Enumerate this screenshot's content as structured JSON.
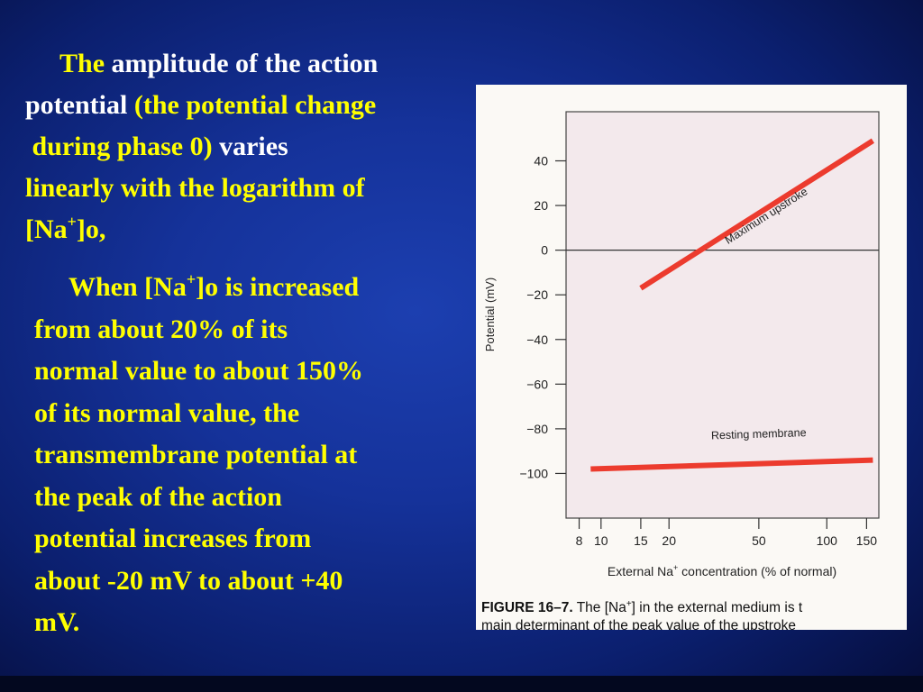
{
  "slide": {
    "p1": {
      "w1": "The",
      "w2": "amplitude of the action",
      "w3": "potential",
      "w4": "(the potential change",
      "w5": "during phase 0)",
      "w6": "varies",
      "w7": "linearly with the logarithm of",
      "w8a": "[Na",
      "w8sup": "+",
      "w8b": "]o,"
    },
    "p2": {
      "l1a": "When [Na",
      "l1sup": "+",
      "l1b": "]o is increased",
      "l2": "from  about 20% of its",
      "l3": "normal value to about 150%",
      "l4": "of its normal value, the",
      "l5": "transmembrane potential at",
      "l6": "the peak of the action",
      "l7": "potential increases from",
      "l8": "about -20 mV to about  +40",
      "l9": "mV."
    }
  },
  "figure": {
    "caption_line1_a": "FIGURE 16–7.",
    "caption_line1_b": "The [Na",
    "caption_line1_sup": "+",
    "caption_line1_c": "] in the external medium is t",
    "caption_line2": "main determinant of the peak value of the upstroke"
  },
  "chart_data": {
    "type": "line",
    "xscale": "log",
    "x_ticks": [
      8,
      10,
      15,
      20,
      50,
      100,
      150
    ],
    "x_tick_labels": [
      "8",
      "10",
      "15",
      "20",
      "50",
      "100",
      "150"
    ],
    "xlim": [
      7,
      170
    ],
    "y_ticks": [
      40,
      20,
      0,
      -20,
      -40,
      -60,
      -80,
      -100
    ],
    "y_tick_labels": [
      "40",
      "20",
      "0",
      "−20",
      "−40",
      "−60",
      "−80",
      "−100"
    ],
    "ylim": [
      -120,
      62
    ],
    "xlabel_a": "External Na",
    "xlabel_sup": "+",
    "xlabel_b": " concentration (% of normal)",
    "ylabel": "Potential (mV)",
    "grid": false,
    "zero_line": true,
    "series": [
      {
        "name": "Maximum upstroke",
        "color": "#ec3b2e",
        "x": [
          15,
          160
        ],
        "y": [
          -17,
          49
        ],
        "label_x": 55,
        "label_y": 14
      },
      {
        "name": "Resting membrane",
        "color": "#ec3b2e",
        "x": [
          9,
          160
        ],
        "y": [
          -98,
          -94
        ],
        "label_x": 50,
        "label_y": -84
      }
    ]
  }
}
